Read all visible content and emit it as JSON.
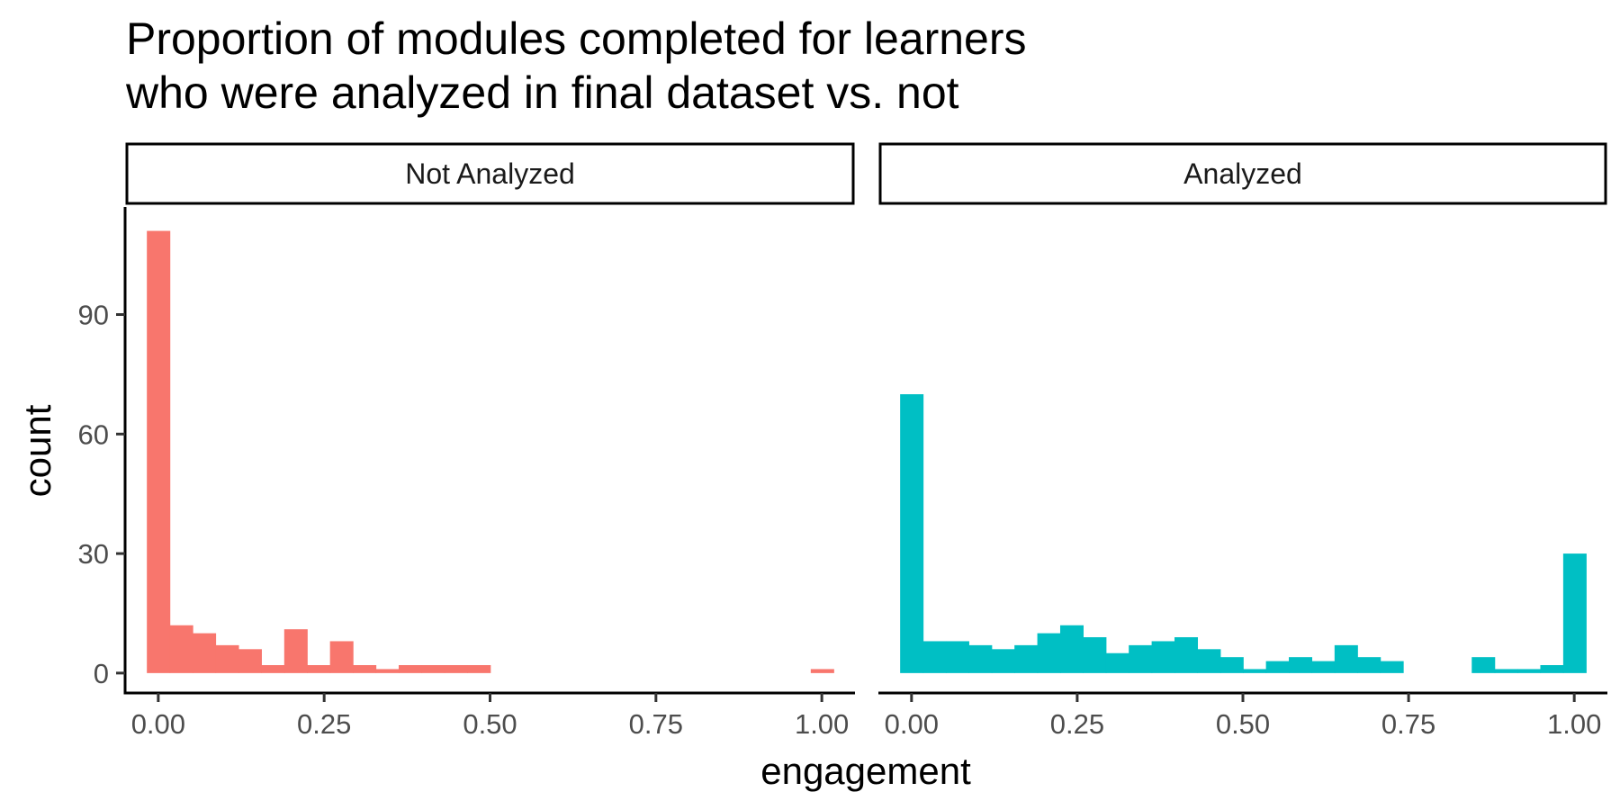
{
  "chart_data": {
    "type": "bar",
    "title_lines": [
      "Proportion of modules completed for learners",
      "who were analyzed in final dataset vs. not"
    ],
    "xlabel": "engagement",
    "ylabel": "count",
    "xlim": [
      -0.05,
      1.05
    ],
    "ylim": [
      -5,
      117
    ],
    "x_ticks": [
      "0.00",
      "0.25",
      "0.50",
      "0.75",
      "1.00"
    ],
    "x_tick_values": [
      0,
      0.25,
      0.5,
      0.75,
      1.0
    ],
    "y_ticks": [
      "0",
      "30",
      "60",
      "90"
    ],
    "y_tick_values": [
      0,
      30,
      60,
      90
    ],
    "bin_width": 0.0345,
    "bin_start": -0.0172,
    "grid": false,
    "legend": "none",
    "panels": [
      {
        "strip": "Not Analyzed",
        "color": "#F8766D",
        "counts": [
          111,
          12,
          10,
          7,
          6,
          2,
          11,
          2,
          8,
          2,
          1,
          2,
          2,
          2,
          2,
          0,
          0,
          0,
          0,
          0,
          0,
          0,
          0,
          0,
          0,
          0,
          0,
          0,
          0,
          1
        ]
      },
      {
        "strip": "Analyzed",
        "color": "#00BFC4",
        "counts": [
          70,
          8,
          8,
          7,
          6,
          7,
          10,
          12,
          9,
          5,
          7,
          8,
          9,
          6,
          4,
          1,
          3,
          4,
          3,
          7,
          4,
          3,
          0,
          0,
          0,
          4,
          1,
          1,
          2,
          30
        ]
      }
    ]
  }
}
